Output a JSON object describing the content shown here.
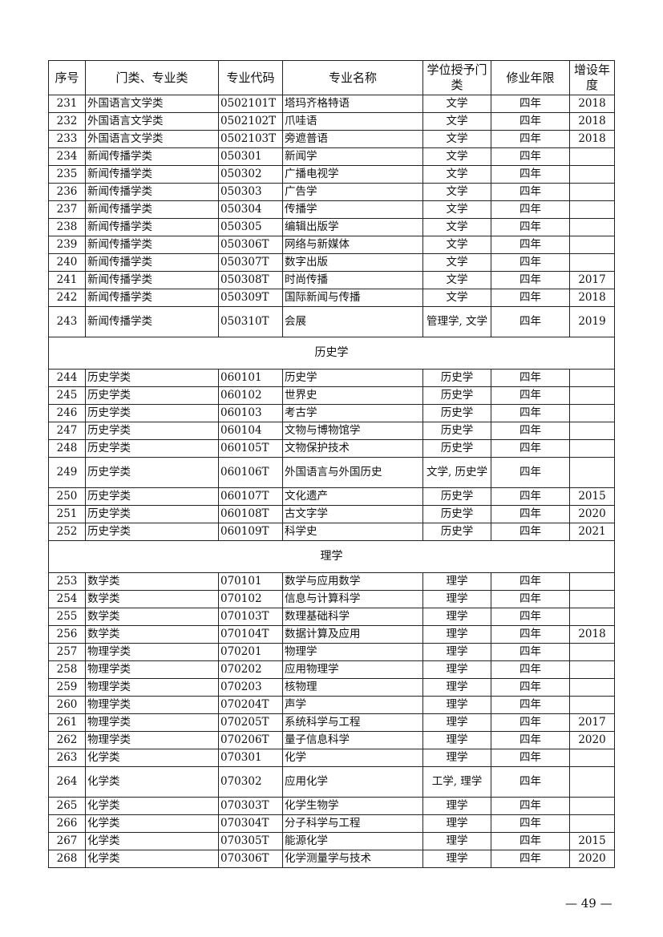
{
  "headers": [
    "序号",
    "门类、专业类",
    "专业代码",
    "专业名称",
    "学位授予门类",
    "修业年限",
    "增设年度"
  ],
  "sections": [
    {
      "title": "",
      "rows": [
        [
          "231",
          "外国语言文学类",
          "0502101T",
          "塔玛齐格特语",
          "文学",
          "四年",
          "2018"
        ],
        [
          "232",
          "外国语言文学类",
          "0502102T",
          "爪哇语",
          "文学",
          "四年",
          "2018"
        ],
        [
          "233",
          "外国语言文学类",
          "0502103T",
          "旁遮普语",
          "文学",
          "四年",
          "2018"
        ],
        [
          "234",
          "新闻传播学类",
          "050301",
          "新闻学",
          "文学",
          "四年",
          ""
        ],
        [
          "235",
          "新闻传播学类",
          "050302",
          "广播电视学",
          "文学",
          "四年",
          ""
        ],
        [
          "236",
          "新闻传播学类",
          "050303",
          "广告学",
          "文学",
          "四年",
          ""
        ],
        [
          "237",
          "新闻传播学类",
          "050304",
          "传播学",
          "文学",
          "四年",
          ""
        ],
        [
          "238",
          "新闻传播学类",
          "050305",
          "编辑出版学",
          "文学",
          "四年",
          ""
        ],
        [
          "239",
          "新闻传播学类",
          "050306T",
          "网络与新媒体",
          "文学",
          "四年",
          ""
        ],
        [
          "240",
          "新闻传播学类",
          "050307T",
          "数字出版",
          "文学",
          "四年",
          ""
        ],
        [
          "241",
          "新闻传播学类",
          "050308T",
          "时尚传播",
          "文学",
          "四年",
          "2017"
        ],
        [
          "242",
          "新闻传播学类",
          "050309T",
          "国际新闻与传播",
          "文学",
          "四年",
          "2018"
        ],
        [
          "243",
          "新闻传播学类",
          "050310T",
          "会展",
          "管理学, 文学",
          "四年",
          "2019"
        ]
      ]
    },
    {
      "title": "历史学",
      "rows": [
        [
          "244",
          "历史学类",
          "060101",
          "历史学",
          "历史学",
          "四年",
          ""
        ],
        [
          "245",
          "历史学类",
          "060102",
          "世界史",
          "历史学",
          "四年",
          ""
        ],
        [
          "246",
          "历史学类",
          "060103",
          "考古学",
          "历史学",
          "四年",
          ""
        ],
        [
          "247",
          "历史学类",
          "060104",
          "文物与博物馆学",
          "历史学",
          "四年",
          ""
        ],
        [
          "248",
          "历史学类",
          "060105T",
          "文物保护技术",
          "历史学",
          "四年",
          ""
        ],
        [
          "249",
          "历史学类",
          "060106T",
          "外国语言与外国历史",
          "文学, 历史学",
          "四年",
          ""
        ],
        [
          "250",
          "历史学类",
          "060107T",
          "文化遗产",
          "历史学",
          "四年",
          "2015"
        ],
        [
          "251",
          "历史学类",
          "060108T",
          "古文字学",
          "历史学",
          "四年",
          "2020"
        ],
        [
          "252",
          "历史学类",
          "060109T",
          "科学史",
          "历史学",
          "四年",
          "2021"
        ]
      ]
    },
    {
      "title": "理学",
      "rows": [
        [
          "253",
          "数学类",
          "070101",
          "数学与应用数学",
          "理学",
          "四年",
          ""
        ],
        [
          "254",
          "数学类",
          "070102",
          "信息与计算科学",
          "理学",
          "四年",
          ""
        ],
        [
          "255",
          "数学类",
          "070103T",
          "数理基础科学",
          "理学",
          "四年",
          ""
        ],
        [
          "256",
          "数学类",
          "070104T",
          "数据计算及应用",
          "理学",
          "四年",
          "2018"
        ],
        [
          "257",
          "物理学类",
          "070201",
          "物理学",
          "理学",
          "四年",
          ""
        ],
        [
          "258",
          "物理学类",
          "070202",
          "应用物理学",
          "理学",
          "四年",
          ""
        ],
        [
          "259",
          "物理学类",
          "070203",
          "核物理",
          "理学",
          "四年",
          ""
        ],
        [
          "260",
          "物理学类",
          "070204T",
          "声学",
          "理学",
          "四年",
          ""
        ],
        [
          "261",
          "物理学类",
          "070205T",
          "系统科学与工程",
          "理学",
          "四年",
          "2017"
        ],
        [
          "262",
          "物理学类",
          "070206T",
          "量子信息科学",
          "理学",
          "四年",
          "2020"
        ],
        [
          "263",
          "化学类",
          "070301",
          "化学",
          "理学",
          "四年",
          ""
        ],
        [
          "264",
          "化学类",
          "070302",
          "应用化学",
          "工学, 理学",
          "四年",
          ""
        ],
        [
          "265",
          "化学类",
          "070303T",
          "化学生物学",
          "理学",
          "四年",
          ""
        ],
        [
          "266",
          "化学类",
          "070304T",
          "分子科学与工程",
          "理学",
          "四年",
          ""
        ],
        [
          "267",
          "化学类",
          "070305T",
          "能源化学",
          "理学",
          "四年",
          "2015"
        ],
        [
          "268",
          "化学类",
          "070306T",
          "化学测量学与技术",
          "理学",
          "四年",
          "2020"
        ]
      ]
    }
  ],
  "page_number": "— 49 —"
}
